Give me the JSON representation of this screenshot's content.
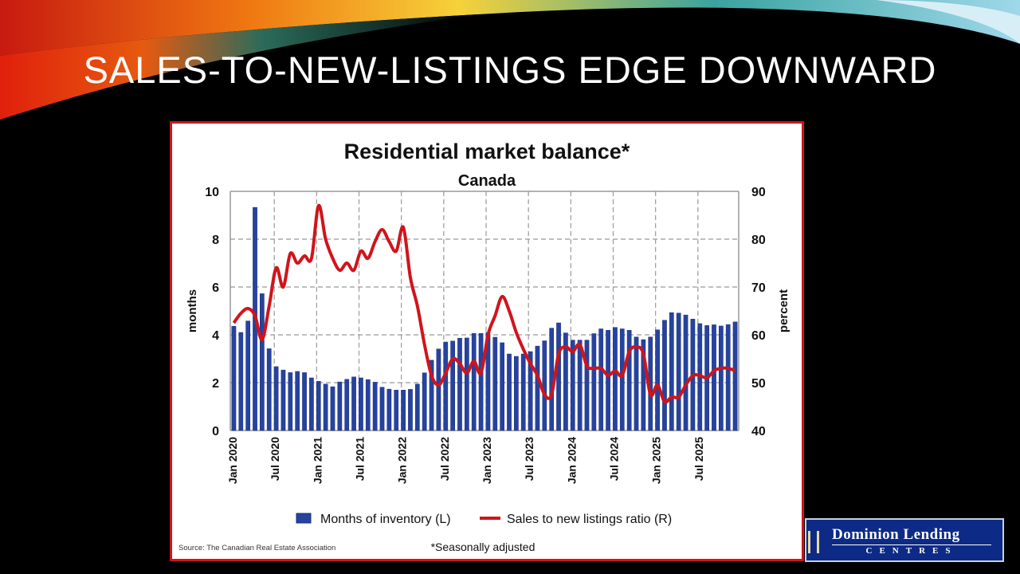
{
  "slide": {
    "title": "SALES-TO-NEW-LISTINGS EDGE DOWNWARD",
    "logo_line1": "Dominion Lending",
    "logo_line2": "CENTRES"
  },
  "colors": {
    "bars": "#2643a0",
    "line": "#d0141b",
    "frame": "#d0141b"
  },
  "chart_data": {
    "type": "bar+line",
    "title": "Residential market balance*",
    "subtitle": "Canada",
    "ylabel_left": "months",
    "ylabel_right": "percent",
    "ylim_left": [
      0,
      10
    ],
    "ylim_right": [
      40,
      90
    ],
    "yticks_left": [
      "0",
      "2",
      "4",
      "6",
      "8",
      "10"
    ],
    "yticks_right": [
      "40",
      "50",
      "60",
      "70",
      "80",
      "90"
    ],
    "xtick_labels": [
      "Jan 2020",
      "Jul 2020",
      "Jan 2021",
      "Jul 2021",
      "Jan 2022",
      "Jul 2022",
      "Jan 2023",
      "Jul 2023",
      "Jan 2024",
      "Jul 2024",
      "Jan 2025",
      "Jul 2025"
    ],
    "x_start": "Jan 2020",
    "x_end": "Dec 2025",
    "grid": true,
    "legend_position": "bottom",
    "series": [
      {
        "name": "Months of inventory (L)",
        "type": "bar",
        "axis": "left",
        "values": [
          4.36,
          4.1,
          4.58,
          9.33,
          5.72,
          3.42,
          2.67,
          2.53,
          2.42,
          2.47,
          2.42,
          2.2,
          2.06,
          1.94,
          1.83,
          2.03,
          2.14,
          2.24,
          2.2,
          2.13,
          2.02,
          1.81,
          1.73,
          1.69,
          1.69,
          1.72,
          1.94,
          2.41,
          2.94,
          3.41,
          3.7,
          3.74,
          3.86,
          3.87,
          4.06,
          4.06,
          4.1,
          3.9,
          3.67,
          3.2,
          3.1,
          3.2,
          3.3,
          3.53,
          3.75,
          4.28,
          4.5,
          4.08,
          3.78,
          3.78,
          3.78,
          4.05,
          4.25,
          4.19,
          4.31,
          4.25,
          4.19,
          3.91,
          3.8,
          3.91,
          4.21,
          4.61,
          4.93,
          4.91,
          4.83,
          4.66,
          4.47,
          4.39,
          4.42,
          4.37,
          4.43,
          4.54
        ]
      },
      {
        "name": "Sales to new listings ratio (R)",
        "type": "line",
        "axis": "right",
        "values": [
          62.5,
          64.5,
          65.5,
          64,
          59,
          66,
          74,
          70,
          77,
          75,
          76.5,
          76,
          87,
          80,
          76,
          73.5,
          75,
          73.5,
          77.5,
          76,
          79.5,
          82,
          79.5,
          77.5,
          82.5,
          72,
          66,
          58,
          51.5,
          49.5,
          52,
          55,
          54,
          52,
          54.5,
          52,
          60,
          64,
          68,
          65,
          60.5,
          57,
          54,
          51.5,
          47.5,
          47.5,
          56,
          57.5,
          56.5,
          58,
          53.5,
          53,
          53,
          51.5,
          52.5,
          51.5,
          56.5,
          57.5,
          56,
          47.5,
          49.5,
          46,
          47,
          47,
          49.5,
          51.5,
          51.5,
          51,
          52.5,
          53,
          53,
          52.5
        ]
      }
    ],
    "source": "Source: The Canadian Real Estate Association",
    "footnote": "*Seasonally adjusted"
  }
}
